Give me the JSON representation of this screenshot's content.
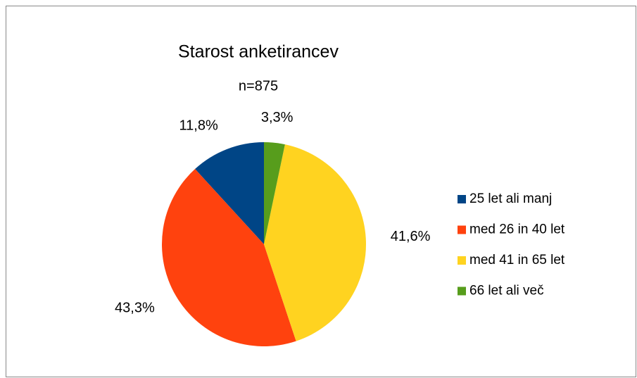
{
  "chart_data": {
    "type": "pie",
    "title": "Starost anketirancev",
    "subtitle": "n=875",
    "categories": [
      "25 let ali manj",
      "med 26 in 40 let",
      "med 41 in 65 let",
      "66 let ali več"
    ],
    "values": [
      11.8,
      43.3,
      41.6,
      3.3
    ],
    "value_labels": [
      "11,8%",
      "43,3%",
      "41,6%",
      "3,3%"
    ],
    "colors": [
      "#004586",
      "#ff420e",
      "#ffd320",
      "#579d1c"
    ],
    "legend": "right"
  }
}
